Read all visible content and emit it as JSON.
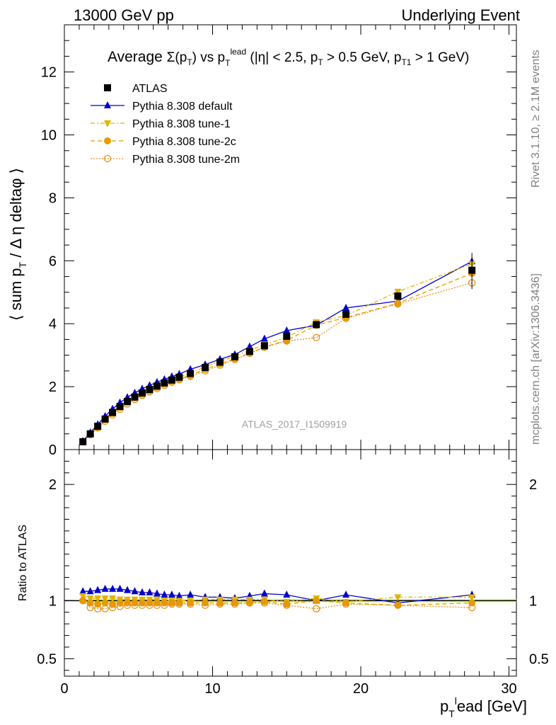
{
  "header": {
    "left": "13000 GeV pp",
    "right": "Underlying Event"
  },
  "side": {
    "rivet": "Rivet 3.1.10, ≥ 2.1M events",
    "mcplots": "mcplots.cern.ch [arXiv:1306.3436]"
  },
  "labels": {
    "title": "Average Σ(pT) vs pT^lead (|η| < 2.5, pT > 0.5 GeV, pT1 > 1 GeV)",
    "ylabel": "⟨ sum pT / Δη deltaφ ⟩",
    "ratio_ylabel": "Ratio to ATLAS",
    "xlabel": "pT^lead [GeV]",
    "analysis": "ATLAS_2017_I1509919"
  },
  "colors": {
    "atlas": "#000000",
    "default": "#0000cc",
    "tune1": "#e0b400",
    "tune2c": "#e69b00",
    "tune2m": "#e6901a",
    "band": "#ccff66"
  },
  "chart_data": [
    {
      "type": "line",
      "panel": "main",
      "xlim": [
        0,
        30.5
      ],
      "ylim": [
        0,
        13.5
      ],
      "xticks": [
        0,
        10,
        20,
        30
      ],
      "yticks": [
        0,
        2,
        4,
        6,
        8,
        10,
        12
      ],
      "legend_position": "top-left",
      "x": [
        1.25,
        1.75,
        2.25,
        2.75,
        3.25,
        3.75,
        4.25,
        4.75,
        5.25,
        5.75,
        6.25,
        6.75,
        7.25,
        7.75,
        8.5,
        9.5,
        10.5,
        11.5,
        12.5,
        13.5,
        15,
        17,
        19,
        22.5,
        27.5
      ],
      "series": [
        {
          "name": "ATLAS",
          "marker": "square",
          "values": [
            0.25,
            0.5,
            0.74,
            0.97,
            1.18,
            1.37,
            1.53,
            1.67,
            1.8,
            1.91,
            2.02,
            2.12,
            2.21,
            2.3,
            2.42,
            2.61,
            2.78,
            2.95,
            3.12,
            3.3,
            3.6,
            3.97,
            4.3,
            4.88,
            5.7
          ]
        },
        {
          "name": "Pythia 8.308 default",
          "marker": "triangle-up",
          "values": [
            0.27,
            0.54,
            0.8,
            1.06,
            1.29,
            1.49,
            1.66,
            1.8,
            1.93,
            2.04,
            2.14,
            2.23,
            2.32,
            2.4,
            2.55,
            2.7,
            2.87,
            3.02,
            3.27,
            3.52,
            3.78,
            3.95,
            4.5,
            4.72,
            5.98
          ]
        },
        {
          "name": "Pythia 8.308 tune-1",
          "marker": "triangle-down",
          "values": [
            0.26,
            0.51,
            0.76,
            0.99,
            1.2,
            1.39,
            1.55,
            1.69,
            1.82,
            1.93,
            2.04,
            2.13,
            2.22,
            2.31,
            2.43,
            2.63,
            2.8,
            2.97,
            3.15,
            3.33,
            3.57,
            4.05,
            4.26,
            5.02,
            5.9
          ]
        },
        {
          "name": "Pythia 8.308 tune-2c",
          "marker": "circle",
          "values": [
            0.25,
            0.49,
            0.72,
            0.95,
            1.15,
            1.34,
            1.5,
            1.64,
            1.76,
            1.87,
            1.98,
            2.08,
            2.17,
            2.25,
            2.36,
            2.55,
            2.72,
            2.89,
            3.06,
            3.26,
            3.47,
            3.95,
            4.2,
            4.65,
            5.6
          ]
        },
        {
          "name": "Pythia 8.308 tune-2m",
          "marker": "circle-open",
          "values": [
            0.25,
            0.47,
            0.69,
            0.9,
            1.1,
            1.28,
            1.45,
            1.59,
            1.72,
            1.83,
            1.94,
            2.04,
            2.14,
            2.22,
            2.33,
            2.5,
            2.68,
            2.86,
            3.06,
            3.25,
            3.45,
            3.56,
            4.17,
            4.63,
            5.3
          ]
        }
      ]
    },
    {
      "type": "line",
      "panel": "ratio",
      "xlim": [
        0,
        30.5
      ],
      "ylim": [
        0.35,
        2.3
      ],
      "xticks": [
        0,
        10,
        20,
        30
      ],
      "yticks": [
        0.5,
        1,
        2
      ],
      "x": [
        1.25,
        1.75,
        2.25,
        2.75,
        3.25,
        3.75,
        4.25,
        4.75,
        5.25,
        5.75,
        6.25,
        6.75,
        7.25,
        7.75,
        8.5,
        9.5,
        10.5,
        11.5,
        12.5,
        13.5,
        15,
        17,
        19,
        22.5,
        27.5
      ],
      "series": [
        {
          "name": "Pythia 8.308 default",
          "values": [
            1.08,
            1.08,
            1.09,
            1.1,
            1.1,
            1.1,
            1.09,
            1.08,
            1.07,
            1.07,
            1.06,
            1.05,
            1.05,
            1.04,
            1.05,
            1.03,
            1.03,
            1.02,
            1.04,
            1.06,
            1.05,
            1.0,
            1.05,
            0.98,
            1.05
          ]
        },
        {
          "name": "Pythia 8.308 tune-1",
          "values": [
            1.04,
            1.02,
            1.02,
            1.02,
            1.02,
            1.01,
            1.01,
            1.01,
            1.01,
            1.01,
            1.01,
            1.0,
            1.0,
            1.0,
            1.0,
            1.01,
            1.01,
            1.01,
            1.01,
            1.01,
            0.99,
            1.02,
            0.99,
            1.03,
            1.03
          ]
        },
        {
          "name": "Pythia 8.308 tune-2c",
          "values": [
            1.0,
            0.98,
            0.97,
            0.98,
            0.97,
            0.98,
            0.98,
            0.98,
            0.98,
            0.98,
            0.98,
            0.98,
            0.98,
            0.98,
            0.98,
            0.98,
            0.98,
            0.98,
            0.98,
            0.99,
            0.97,
            1.0,
            0.98,
            0.96,
            0.98
          ]
        },
        {
          "name": "Pythia 8.308 tune-2m",
          "values": [
            1.0,
            0.94,
            0.93,
            0.93,
            0.94,
            0.95,
            0.96,
            0.96,
            0.96,
            0.96,
            0.96,
            0.96,
            0.97,
            0.97,
            0.97,
            0.96,
            0.97,
            0.97,
            0.98,
            0.98,
            0.96,
            0.93,
            0.97,
            0.96,
            0.94
          ]
        }
      ]
    }
  ]
}
